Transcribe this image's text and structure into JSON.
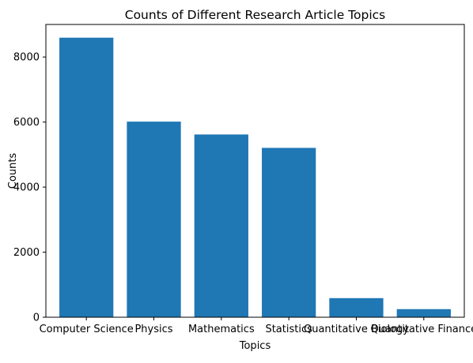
{
  "chart_data": {
    "type": "bar",
    "title": "Counts of Different Research Article Topics",
    "xlabel": "Topics",
    "ylabel": "Counts",
    "categories": [
      "Computer Science",
      "Physics",
      "Mathematics",
      "Statistics",
      "Quantitative Biology",
      "Quantitative Finance"
    ],
    "values": [
      8594,
      6013,
      5618,
      5206,
      587,
      249
    ],
    "ylim": [
      0,
      9000
    ],
    "yticks": [
      0,
      2000,
      4000,
      6000,
      8000
    ],
    "grid": false,
    "legend": "none",
    "bar_color": "#1f77b4"
  }
}
